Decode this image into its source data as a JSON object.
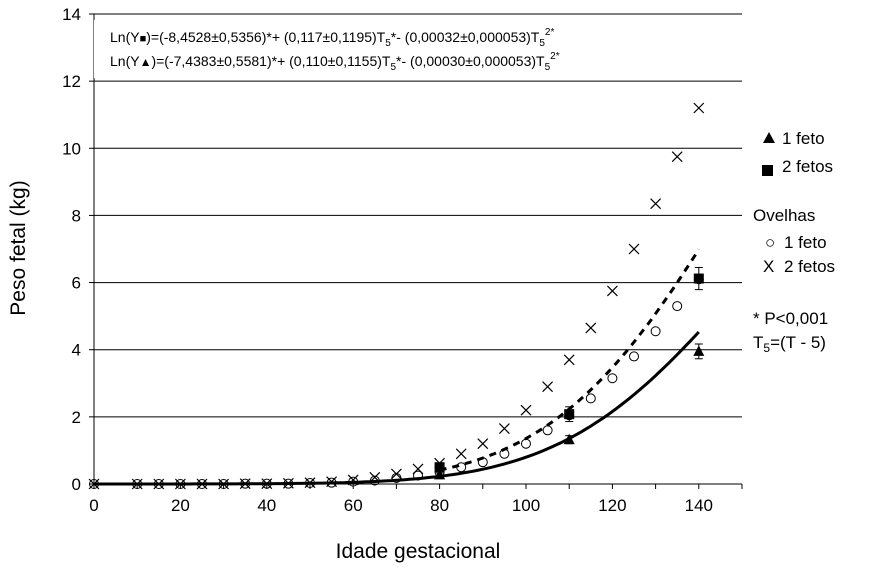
{
  "chart_data": {
    "type": "scatter",
    "xlabel": "Idade gestacional",
    "ylabel": "Peso fetal (kg)",
    "xlim": [
      0,
      150
    ],
    "ylim": [
      0,
      14
    ],
    "xticks": [
      0,
      20,
      40,
      60,
      80,
      100,
      120,
      140
    ],
    "yticks": [
      0,
      2,
      4,
      6,
      8,
      10,
      12,
      14
    ],
    "grid": "horizontal",
    "legend_position": "right",
    "equations": {
      "two_fetuses": {
        "prefix": "Ln(Y",
        "body": ")=(-8,4528±0,5356)*+ (0,117±0,1195)T",
        "mid": "*- (0,00032±0,000053)T",
        "sub": "5",
        "sup": "2",
        "star": "*",
        "marker": "square"
      },
      "one_fetus": {
        "prefix": "Ln(Y",
        "marker_glyph": "▲",
        "body": ")=(-7,4383±0,5581)*+ (0,110±0,1155)T",
        "mid": "*- (0,00030±0,000053)T",
        "sub": "5",
        "sup": "2",
        "star": "*",
        "marker": "triangle"
      }
    },
    "legend": {
      "one_fetus": "1 feto",
      "two_fetuses": "2 fetos",
      "ewes_title": "Ovelhas",
      "ewes_one": "1 feto",
      "ewes_one_symbol": "○",
      "ewes_two": "2 fetos",
      "ewes_two_symbol": "X",
      "note_significance": "*  P<0,001",
      "note_t_prefix": "T",
      "note_t_sub": "5",
      "note_t_suffix": "=(T - 5)"
    },
    "series": [
      {
        "name": "2 fetos",
        "kind": "measured",
        "marker": "square",
        "x": [
          80,
          110,
          140
        ],
        "y": [
          0.5,
          2.08,
          6.12
        ],
        "err": [
          0.1,
          0.22,
          0.33
        ]
      },
      {
        "name": "1 feto",
        "kind": "measured",
        "marker": "triangle",
        "x": [
          80,
          110,
          140
        ],
        "y": [
          0.27,
          1.32,
          3.95
        ],
        "err": [
          0.06,
          0.12,
          0.22
        ]
      },
      {
        "name": "Ovelhas 1 feto",
        "kind": "reference",
        "marker": "circle",
        "x": [
          0,
          10,
          15,
          20,
          25,
          30,
          35,
          40,
          45,
          50,
          55,
          60,
          65,
          70,
          75,
          80,
          85,
          90,
          95,
          100,
          105,
          110,
          115,
          120,
          125,
          130,
          135,
          140
        ],
        "y": [
          0,
          0,
          0,
          0,
          0,
          0,
          0.01,
          0.01,
          0.01,
          0.03,
          0.04,
          0.07,
          0.1,
          0.18,
          0.25,
          0.35,
          0.5,
          0.65,
          0.9,
          1.2,
          1.6,
          2.05,
          2.55,
          3.15,
          3.8,
          4.55,
          5.3,
          6.1
        ]
      },
      {
        "name": "Ovelhas 2 fetos",
        "kind": "reference",
        "marker": "x",
        "x": [
          0,
          10,
          15,
          20,
          25,
          30,
          35,
          40,
          45,
          50,
          55,
          60,
          65,
          70,
          75,
          80,
          85,
          90,
          95,
          100,
          105,
          110,
          115,
          120,
          125,
          130,
          135,
          140
        ],
        "y": [
          0,
          0,
          0,
          0,
          0,
          0,
          0.01,
          0.01,
          0.02,
          0.04,
          0.07,
          0.12,
          0.2,
          0.3,
          0.45,
          0.62,
          0.9,
          1.2,
          1.65,
          2.2,
          2.9,
          3.7,
          4.65,
          5.75,
          7.0,
          8.35,
          9.75,
          11.2
        ]
      },
      {
        "name": "2 fetos",
        "kind": "fit",
        "style": "solid",
        "coef": [
          -8.4528,
          0.117,
          -0.00032
        ],
        "shift": 5,
        "domain": [
          0,
          140
        ]
      },
      {
        "name": "1 feto",
        "kind": "fit",
        "style": "dashed",
        "coef": [
          -7.4383,
          0.11,
          -0.0003
        ],
        "shift": 5,
        "domain": [
          80,
          140
        ]
      }
    ]
  }
}
